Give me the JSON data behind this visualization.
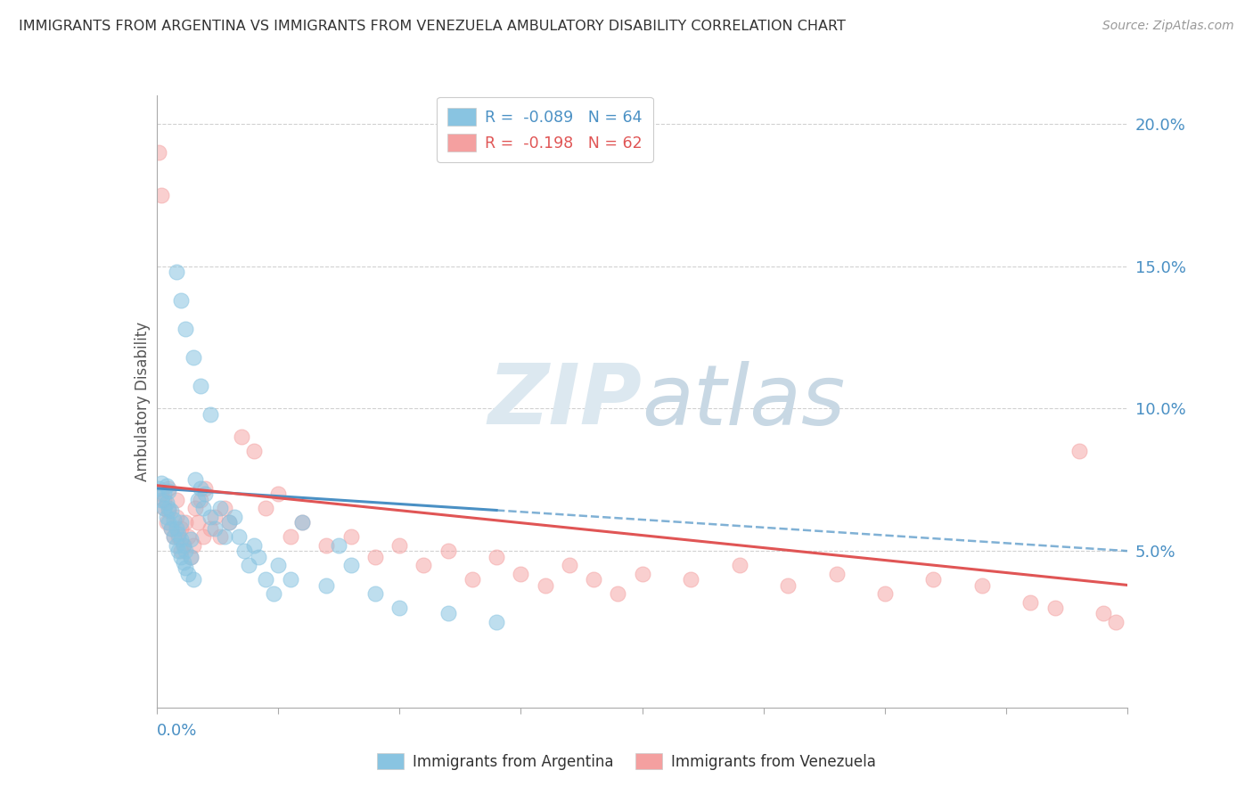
{
  "title": "IMMIGRANTS FROM ARGENTINA VS IMMIGRANTS FROM VENEZUELA AMBULATORY DISABILITY CORRELATION CHART",
  "source": "Source: ZipAtlas.com",
  "ylabel": "Ambulatory Disability",
  "argentina_color": "#89c4e1",
  "venezuela_color": "#f4a0a0",
  "argentina_line_color": "#4a90c4",
  "venezuela_line_color": "#e05555",
  "argentina_R": -0.089,
  "argentina_N": 64,
  "venezuela_R": -0.198,
  "venezuela_N": 62,
  "x_min": 0.0,
  "x_max": 0.4,
  "y_min": -0.005,
  "y_max": 0.21,
  "y_ticks": [
    0.0,
    0.05,
    0.1,
    0.15,
    0.2
  ],
  "y_tick_labels": [
    "",
    "5.0%",
    "10.0%",
    "15.0%",
    "20.0%"
  ],
  "background_color": "#ffffff",
  "grid_color": "#cccccc",
  "watermark_zip_color": "#d8e8f0",
  "watermark_atlas_color": "#d0d8e0"
}
